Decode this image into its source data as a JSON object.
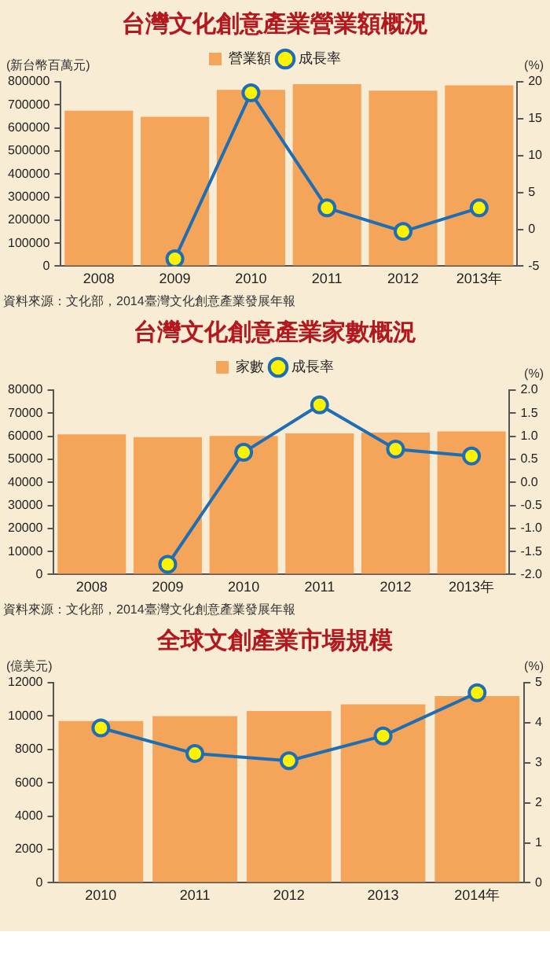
{
  "chart_data": [
    {
      "type": "bar",
      "title": "台灣文化創意產業營業額概況",
      "ylabel": "(新台幣百萬元)",
      "y2label": "(%)",
      "categories": [
        "2008",
        "2009",
        "2010",
        "2011",
        "2012",
        "2013年"
      ],
      "series": [
        {
          "name": "營業額",
          "color": "#f4a55a",
          "values": [
            675000,
            648000,
            765000,
            790000,
            762000,
            785000
          ]
        },
        {
          "name": "成長率",
          "type": "line",
          "axis": "y2",
          "color": "#1f6db3",
          "values": [
            null,
            -4.0,
            18.5,
            2.9,
            -0.3,
            2.9
          ]
        }
      ],
      "ylim": [
        0,
        800000
      ],
      "yticks": [
        0,
        100000,
        200000,
        300000,
        400000,
        500000,
        600000,
        700000,
        800000
      ],
      "y2lim": [
        -5,
        20
      ],
      "y2ticks": [
        -5,
        0,
        5,
        10,
        15,
        20
      ],
      "legend": "top left",
      "marker": "circle",
      "annotations": [
        "資料來源：文化部，2014臺灣文化創意產業發展年報"
      ]
    },
    {
      "type": "bar",
      "title": "台灣文化創意產業家數概況",
      "y2label": "(%)",
      "categories": [
        "2008",
        "2009",
        "2010",
        "2011",
        "2012",
        "2013年"
      ],
      "series": [
        {
          "name": "家數",
          "color": "#f4a55a",
          "values": [
            60800,
            59600,
            60100,
            61200,
            61600,
            62100
          ]
        },
        {
          "name": "成長率",
          "type": "line",
          "axis": "y2",
          "color": "#1f6db3",
          "values": [
            null,
            -1.78,
            0.65,
            1.68,
            0.72,
            0.57
          ]
        }
      ],
      "ylim": [
        0,
        80000
      ],
      "yticks": [
        0,
        10000,
        20000,
        30000,
        40000,
        50000,
        60000,
        70000,
        80000
      ],
      "y2lim": [
        -2,
        2
      ],
      "y2ticks": [
        {
          "value": -2,
          "label": "-2.0"
        },
        {
          "value": -1.5,
          "label": "-1.5"
        },
        {
          "value": -1,
          "label": "-1.0"
        },
        {
          "value": -0.5,
          "label": "-0.5"
        },
        {
          "value": 0,
          "label": "0.0"
        },
        {
          "value": 0.5,
          "label": "0.5"
        },
        {
          "value": 1,
          "label": "1.0"
        },
        {
          "value": 1.5,
          "label": "1.5"
        },
        {
          "value": 2,
          "label": "2.0"
        }
      ],
      "legend": "top left",
      "marker": "circle",
      "annotations": [
        "資料來源：文化部，2014臺灣文化創意產業發展年報"
      ]
    },
    {
      "type": "bar",
      "title": "全球文創產業市場規模",
      "ylabel": "(億美元)",
      "y2label": "(%)",
      "categories": [
        "2010",
        "2011",
        "2012",
        "2013",
        "2014年"
      ],
      "series": [
        {
          "color": "#f4a55a",
          "values": [
            9700,
            10000,
            10300,
            10700,
            11200
          ]
        },
        {
          "type": "line",
          "axis": "y2",
          "color": "#1f6db3",
          "values": [
            3.87,
            3.23,
            3.05,
            3.67,
            4.75
          ]
        }
      ],
      "ylim": [
        0,
        12000
      ],
      "yticks": [
        0,
        2000,
        4000,
        6000,
        8000,
        10000,
        12000
      ],
      "y2lim": [
        0,
        5
      ],
      "y2ticks": [
        0,
        1,
        2,
        3,
        4,
        5
      ],
      "marker": "circle"
    }
  ]
}
